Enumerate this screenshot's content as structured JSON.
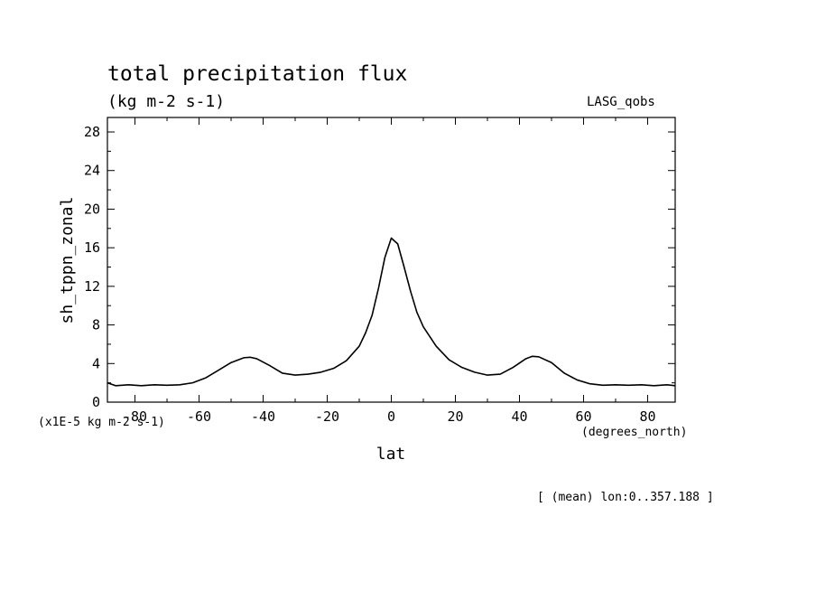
{
  "chart_data": {
    "type": "line",
    "title": "total precipitation flux",
    "subtitle": "(kg m-2 s-1)",
    "dataset_label": "LASG_qobs",
    "ylabel": "sh_tppn_zonal",
    "y_units": "(x1E-5 kg m-2 s-1)",
    "xlabel": "lat",
    "x_units": "(degrees_north)",
    "footnote": "[ (mean) lon:0..357.188 ]",
    "xlim": [
      -88.6,
      88.6
    ],
    "ylim": [
      0,
      29.5
    ],
    "x_ticks": [
      -80,
      -60,
      -40,
      -20,
      0,
      20,
      40,
      60,
      80
    ],
    "x_tick_labels": [
      "-80",
      "-60",
      "-40",
      "-20",
      "0",
      "20",
      "40",
      "60",
      "80"
    ],
    "y_ticks": [
      0,
      4,
      8,
      12,
      16,
      20,
      24,
      28
    ],
    "y_tick_labels": [
      "0",
      "4",
      "8",
      "12",
      "16",
      "20",
      "24",
      "28"
    ],
    "grid": false,
    "line_color": "#000000",
    "series": [
      {
        "x": [
          -88.6,
          -86,
          -82,
          -78,
          -74,
          -70,
          -66,
          -62,
          -58,
          -54,
          -50,
          -46,
          -44,
          -42,
          -38,
          -34,
          -30,
          -26,
          -22,
          -18,
          -14,
          -10,
          -8,
          -6,
          -4,
          -2,
          0,
          2,
          4,
          6,
          8,
          10,
          14,
          18,
          22,
          26,
          30,
          34,
          38,
          42,
          44,
          46,
          50,
          54,
          58,
          62,
          66,
          70,
          74,
          78,
          82,
          86,
          88.6
        ],
        "y": [
          2.0,
          1.7,
          1.8,
          1.7,
          1.8,
          1.75,
          1.8,
          2.0,
          2.5,
          3.3,
          4.1,
          4.6,
          4.65,
          4.5,
          3.8,
          3.0,
          2.8,
          2.9,
          3.1,
          3.5,
          4.3,
          5.8,
          7.2,
          9.0,
          11.8,
          15.0,
          17.0,
          16.4,
          14.0,
          11.5,
          9.3,
          7.8,
          5.8,
          4.4,
          3.6,
          3.1,
          2.8,
          2.9,
          3.6,
          4.5,
          4.75,
          4.7,
          4.1,
          3.0,
          2.3,
          1.9,
          1.75,
          1.8,
          1.75,
          1.8,
          1.7,
          1.8,
          1.7
        ]
      }
    ]
  }
}
